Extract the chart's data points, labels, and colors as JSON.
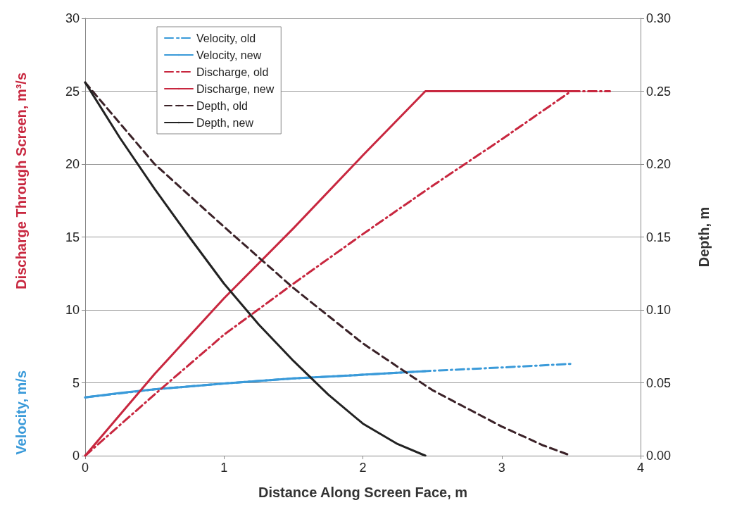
{
  "chart_data": {
    "type": "line",
    "xlabel": "Distance Along Screen Face, m",
    "ylabel": "Discharge Through Screen, m³/s",
    "y2label": "Depth, m",
    "annotations": [
      "Velocity, m/s"
    ],
    "xlim": [
      0,
      4
    ],
    "xticks": [
      0,
      1,
      2,
      3,
      4
    ],
    "ylim": [
      0,
      30
    ],
    "yticks": [
      0,
      5,
      10,
      15,
      20,
      25,
      30
    ],
    "y2lim": [
      0,
      0.3
    ],
    "y2ticks": [
      {
        "value": 0,
        "label": "0.00"
      },
      {
        "value": 0.05,
        "label": "0.05"
      },
      {
        "value": 0.1,
        "label": "0.10"
      },
      {
        "value": 0.15,
        "label": "0.15"
      },
      {
        "value": 0.2,
        "label": "0.20"
      },
      {
        "value": 0.25,
        "label": "0.25"
      },
      {
        "value": 0.3,
        "label": "0.30"
      }
    ],
    "grid": "y",
    "legend": "top left",
    "marker": "none",
    "series": [
      {
        "name": "Velocity, old",
        "color": "#3a9ad9",
        "line_style": "dashdot",
        "x": [
          0,
          0.5,
          1,
          1.5,
          2,
          2.45,
          3,
          3.5
        ],
        "values": [
          4.0,
          4.55,
          4.95,
          5.3,
          5.55,
          5.8,
          6.05,
          6.3
        ]
      },
      {
        "name": "Velocity, new",
        "color": "#3a9ad9",
        "line_style": "solid",
        "x": [
          0,
          0.25,
          0.5,
          1,
          1.5,
          2,
          2.45
        ],
        "values": [
          4.0,
          4.3,
          4.55,
          4.95,
          5.3,
          5.55,
          5.8
        ]
      },
      {
        "name": "Discharge, old",
        "color": "#c8273f",
        "line_style": "dashdot",
        "x": [
          0,
          0.5,
          1,
          1.5,
          2,
          2.5,
          3,
          3.5,
          3.78
        ],
        "values": [
          0,
          4.2,
          8.3,
          11.8,
          15.2,
          18.5,
          21.7,
          25,
          25
        ]
      },
      {
        "name": "Discharge, new",
        "color": "#c8273f",
        "line_style": "solid",
        "x": [
          0,
          0.5,
          1,
          1.5,
          2,
          2.45,
          3.5
        ],
        "values": [
          0,
          5.6,
          10.8,
          15.6,
          20.6,
          25,
          25
        ]
      },
      {
        "name": "Depth, old",
        "color": "#3b2228",
        "line_style": "dashed",
        "axis": "y2",
        "x": [
          0,
          0.5,
          1,
          1.5,
          2,
          2.5,
          3,
          3.3,
          3.5
        ],
        "values": [
          0.256,
          0.2,
          0.157,
          0.115,
          0.077,
          0.045,
          0.02,
          0.007,
          0
        ]
      },
      {
        "name": "Depth, new",
        "color": "#222222",
        "line_style": "solid",
        "axis": "y2",
        "x": [
          0,
          0.25,
          0.5,
          0.75,
          1,
          1.25,
          1.5,
          1.75,
          2,
          2.25,
          2.45
        ],
        "values": [
          0.256,
          0.218,
          0.183,
          0.15,
          0.118,
          0.09,
          0.065,
          0.042,
          0.022,
          0.008,
          0
        ]
      }
    ]
  }
}
